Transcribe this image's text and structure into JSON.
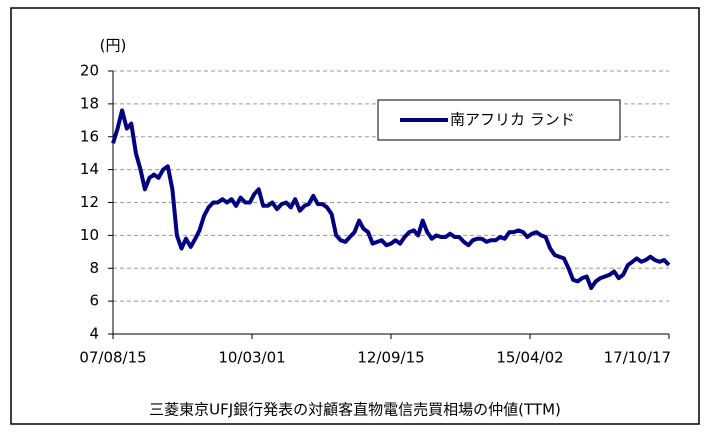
{
  "chart_data": {
    "type": "line",
    "y_label": "(円)",
    "caption": "三菱東京UFJ銀行発表の対顧客直物電信売買相場の仲値(TTM)",
    "legend": "upper right",
    "grid": true,
    "x": [
      "2007-08-15",
      "2007-09-15",
      "2007-10-15",
      "2007-11-15",
      "2007-12-15",
      "2008-01-15",
      "2008-02-15",
      "2008-03-15",
      "2008-04-15",
      "2008-05-15",
      "2008-06-15",
      "2008-07-15",
      "2008-08-15",
      "2008-09-15",
      "2008-10-15",
      "2008-11-15",
      "2008-12-15",
      "2009-01-15",
      "2009-02-15",
      "2009-03-15",
      "2009-04-15",
      "2009-05-15",
      "2009-06-15",
      "2009-07-15",
      "2009-08-15",
      "2009-09-15",
      "2009-10-15",
      "2009-11-15",
      "2009-12-15",
      "2010-01-15",
      "2010-02-15",
      "2010-03-15",
      "2010-04-15",
      "2010-05-15",
      "2010-06-15",
      "2010-07-15",
      "2010-08-15",
      "2010-09-15",
      "2010-10-15",
      "2010-11-15",
      "2010-12-15",
      "2011-01-15",
      "2011-02-15",
      "2011-03-15",
      "2011-04-15",
      "2011-05-15",
      "2011-06-15",
      "2011-07-15",
      "2011-08-15",
      "2011-09-15",
      "2011-10-15",
      "2011-11-15",
      "2011-12-15",
      "2012-01-15",
      "2012-02-15",
      "2012-03-15",
      "2012-04-15",
      "2012-05-15",
      "2012-06-15",
      "2012-07-15",
      "2012-08-15",
      "2012-09-15",
      "2012-10-15",
      "2012-11-15",
      "2012-12-15",
      "2013-01-15",
      "2013-02-15",
      "2013-03-15",
      "2013-04-15",
      "2013-05-15",
      "2013-06-15",
      "2013-07-15",
      "2013-08-15",
      "2013-09-15",
      "2013-10-15",
      "2013-11-15",
      "2013-12-15",
      "2014-01-15",
      "2014-02-15",
      "2014-03-15",
      "2014-04-15",
      "2014-05-15",
      "2014-06-15",
      "2014-07-15",
      "2014-08-15",
      "2014-09-15",
      "2014-10-15",
      "2014-11-15",
      "2014-12-15",
      "2015-01-15",
      "2015-02-15",
      "2015-03-15",
      "2015-04-15",
      "2015-05-15",
      "2015-06-15",
      "2015-07-15",
      "2015-08-15",
      "2015-09-15",
      "2015-10-15",
      "2015-11-15",
      "2015-12-15",
      "2016-01-15",
      "2016-02-15",
      "2016-03-15",
      "2016-04-15",
      "2016-05-15",
      "2016-06-15",
      "2016-07-15",
      "2016-08-15",
      "2016-09-15",
      "2016-10-15",
      "2016-11-15",
      "2016-12-15",
      "2017-01-15",
      "2017-02-15",
      "2017-03-15",
      "2017-04-15",
      "2017-05-15",
      "2017-06-15",
      "2017-07-15",
      "2017-08-15",
      "2017-09-15",
      "2017-10-17"
    ],
    "series": [
      {
        "name": "南アフリカ ランド",
        "color": "#000080",
        "values": [
          15.6,
          16.5,
          17.6,
          16.5,
          16.8,
          15.0,
          14.0,
          12.8,
          13.5,
          13.7,
          13.5,
          14.0,
          14.2,
          12.8,
          10.0,
          9.2,
          9.8,
          9.3,
          9.8,
          10.3,
          11.2,
          11.7,
          12.0,
          12.0,
          12.2,
          12.0,
          12.2,
          11.8,
          12.3,
          12.0,
          12.0,
          12.5,
          12.8,
          11.8,
          11.8,
          12.0,
          11.6,
          11.9,
          12.0,
          11.7,
          12.2,
          11.5,
          11.8,
          11.9,
          12.4,
          11.9,
          11.9,
          11.7,
          11.3,
          10.0,
          9.7,
          9.6,
          9.9,
          10.2,
          10.9,
          10.4,
          10.2,
          9.5,
          9.6,
          9.7,
          9.4,
          9.5,
          9.7,
          9.5,
          9.9,
          10.2,
          10.3,
          10.0,
          10.9,
          10.2,
          9.8,
          10.0,
          9.9,
          9.9,
          10.1,
          9.9,
          9.9,
          9.6,
          9.4,
          9.7,
          9.8,
          9.8,
          9.6,
          9.7,
          9.7,
          9.9,
          9.8,
          10.2,
          10.2,
          10.3,
          10.2,
          9.9,
          10.1,
          10.2,
          10.0,
          9.9,
          9.2,
          8.8,
          8.7,
          8.6,
          8.0,
          7.3,
          7.2,
          7.4,
          7.5,
          6.8,
          7.2,
          7.4,
          7.5,
          7.6,
          7.8,
          7.4,
          7.6,
          8.2,
          8.4,
          8.6,
          8.4,
          8.5,
          8.7,
          8.5,
          8.4,
          8.5,
          8.2
        ]
      }
    ],
    "xlim": [
      "2007-08-15",
      "2017-10-17"
    ],
    "xticks": [
      {
        "value": "2007-08-15",
        "label": "07/08/15"
      },
      {
        "value": "2010-03-01",
        "label": "10/03/01"
      },
      {
        "value": "2012-09-15",
        "label": "12/09/15"
      },
      {
        "value": "2015-04-02",
        "label": "15/04/02"
      },
      {
        "value": "2017-10-17",
        "label": "17/10/17"
      }
    ],
    "ylim": [
      4,
      20
    ],
    "yticks": [
      4,
      6,
      8,
      10,
      12,
      14,
      16,
      18,
      20
    ]
  }
}
